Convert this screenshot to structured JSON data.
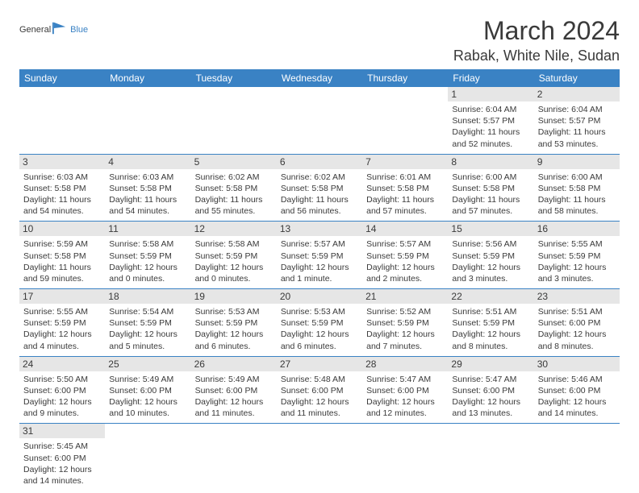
{
  "logo": {
    "text1": "General",
    "text2": "Blue"
  },
  "title": "March 2024",
  "location": "Rabak, White Nile, Sudan",
  "colors": {
    "headerBg": "#3a82c4",
    "headerText": "#ffffff",
    "dayNumBg": "#e6e6e6",
    "borderColor": "#3a82c4",
    "bodyText": "#3a3a3a"
  },
  "weekdays": [
    "Sunday",
    "Monday",
    "Tuesday",
    "Wednesday",
    "Thursday",
    "Friday",
    "Saturday"
  ],
  "weeks": [
    [
      null,
      null,
      null,
      null,
      null,
      {
        "n": "1",
        "sr": "6:04 AM",
        "ss": "5:57 PM",
        "dl": "11 hours and 52 minutes."
      },
      {
        "n": "2",
        "sr": "6:04 AM",
        "ss": "5:57 PM",
        "dl": "11 hours and 53 minutes."
      }
    ],
    [
      {
        "n": "3",
        "sr": "6:03 AM",
        "ss": "5:58 PM",
        "dl": "11 hours and 54 minutes."
      },
      {
        "n": "4",
        "sr": "6:03 AM",
        "ss": "5:58 PM",
        "dl": "11 hours and 54 minutes."
      },
      {
        "n": "5",
        "sr": "6:02 AM",
        "ss": "5:58 PM",
        "dl": "11 hours and 55 minutes."
      },
      {
        "n": "6",
        "sr": "6:02 AM",
        "ss": "5:58 PM",
        "dl": "11 hours and 56 minutes."
      },
      {
        "n": "7",
        "sr": "6:01 AM",
        "ss": "5:58 PM",
        "dl": "11 hours and 57 minutes."
      },
      {
        "n": "8",
        "sr": "6:00 AM",
        "ss": "5:58 PM",
        "dl": "11 hours and 57 minutes."
      },
      {
        "n": "9",
        "sr": "6:00 AM",
        "ss": "5:58 PM",
        "dl": "11 hours and 58 minutes."
      }
    ],
    [
      {
        "n": "10",
        "sr": "5:59 AM",
        "ss": "5:58 PM",
        "dl": "11 hours and 59 minutes."
      },
      {
        "n": "11",
        "sr": "5:58 AM",
        "ss": "5:59 PM",
        "dl": "12 hours and 0 minutes."
      },
      {
        "n": "12",
        "sr": "5:58 AM",
        "ss": "5:59 PM",
        "dl": "12 hours and 0 minutes."
      },
      {
        "n": "13",
        "sr": "5:57 AM",
        "ss": "5:59 PM",
        "dl": "12 hours and 1 minute."
      },
      {
        "n": "14",
        "sr": "5:57 AM",
        "ss": "5:59 PM",
        "dl": "12 hours and 2 minutes."
      },
      {
        "n": "15",
        "sr": "5:56 AM",
        "ss": "5:59 PM",
        "dl": "12 hours and 3 minutes."
      },
      {
        "n": "16",
        "sr": "5:55 AM",
        "ss": "5:59 PM",
        "dl": "12 hours and 3 minutes."
      }
    ],
    [
      {
        "n": "17",
        "sr": "5:55 AM",
        "ss": "5:59 PM",
        "dl": "12 hours and 4 minutes."
      },
      {
        "n": "18",
        "sr": "5:54 AM",
        "ss": "5:59 PM",
        "dl": "12 hours and 5 minutes."
      },
      {
        "n": "19",
        "sr": "5:53 AM",
        "ss": "5:59 PM",
        "dl": "12 hours and 6 minutes."
      },
      {
        "n": "20",
        "sr": "5:53 AM",
        "ss": "5:59 PM",
        "dl": "12 hours and 6 minutes."
      },
      {
        "n": "21",
        "sr": "5:52 AM",
        "ss": "5:59 PM",
        "dl": "12 hours and 7 minutes."
      },
      {
        "n": "22",
        "sr": "5:51 AM",
        "ss": "5:59 PM",
        "dl": "12 hours and 8 minutes."
      },
      {
        "n": "23",
        "sr": "5:51 AM",
        "ss": "6:00 PM",
        "dl": "12 hours and 8 minutes."
      }
    ],
    [
      {
        "n": "24",
        "sr": "5:50 AM",
        "ss": "6:00 PM",
        "dl": "12 hours and 9 minutes."
      },
      {
        "n": "25",
        "sr": "5:49 AM",
        "ss": "6:00 PM",
        "dl": "12 hours and 10 minutes."
      },
      {
        "n": "26",
        "sr": "5:49 AM",
        "ss": "6:00 PM",
        "dl": "12 hours and 11 minutes."
      },
      {
        "n": "27",
        "sr": "5:48 AM",
        "ss": "6:00 PM",
        "dl": "12 hours and 11 minutes."
      },
      {
        "n": "28",
        "sr": "5:47 AM",
        "ss": "6:00 PM",
        "dl": "12 hours and 12 minutes."
      },
      {
        "n": "29",
        "sr": "5:47 AM",
        "ss": "6:00 PM",
        "dl": "12 hours and 13 minutes."
      },
      {
        "n": "30",
        "sr": "5:46 AM",
        "ss": "6:00 PM",
        "dl": "12 hours and 14 minutes."
      }
    ],
    [
      {
        "n": "31",
        "sr": "5:45 AM",
        "ss": "6:00 PM",
        "dl": "12 hours and 14 minutes."
      },
      null,
      null,
      null,
      null,
      null,
      null
    ]
  ],
  "labels": {
    "sunrise": "Sunrise: ",
    "sunset": "Sunset: ",
    "daylight": "Daylight: "
  }
}
